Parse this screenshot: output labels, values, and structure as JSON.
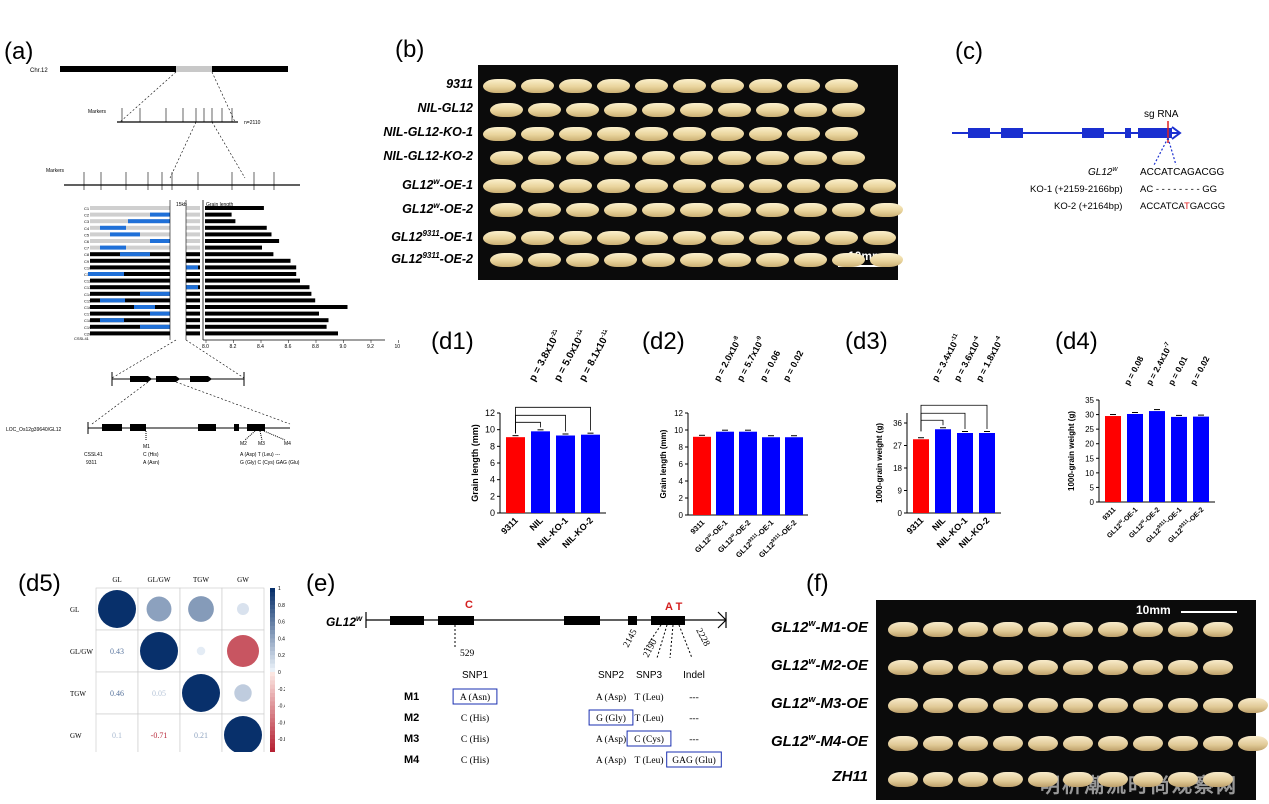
{
  "panels": {
    "a": "(a)",
    "b": "(b)",
    "c": "(c)",
    "d1": "(d1)",
    "d2": "(d2)",
    "d3": "(d3)",
    "d4": "(d4)",
    "d5": "(d5)",
    "e": "(e)",
    "f": "(f)"
  },
  "panel_b": {
    "rows": [
      "9311",
      "NIL-GL12",
      "NIL-GL12-KO-1",
      "NIL-GL12-KO-2",
      "GL12w-OE-1",
      "GL12w-OE-2",
      "GL129311-OE-1",
      "GL129311-OE-2"
    ],
    "scale": "10mm"
  },
  "panel_c": {
    "sg": "sg RNA",
    "gene": "GL12",
    "gene_sup": "w",
    "seq_wt": "ACCATCAGACGG",
    "ko1_label": "KO-1 (+2159-2166bp)",
    "ko1_seq": "AC - - - - - - - - GG",
    "ko2_label": "KO-2 (+2164bp)",
    "ko2_seq_a": "ACCATCA",
    "ko2_seq_ins": "T",
    "ko2_seq_b": "GACGG"
  },
  "panel_a": {
    "chr": "Chr.12",
    "markers": "Markers",
    "markers2": "Markers",
    "n": "n=2110",
    "lab_kb": "15kb",
    "grain_length": "Grain length",
    "locus": "LOC_Os12g39640/GL12",
    "cssl": "CSSL41",
    "cssl_b": "CSSL41",
    "n9311": "9311",
    "m1": "M1",
    "m2": "M2",
    "m3": "M3",
    "m4": "M4",
    "cssl_vals": "C (His)",
    "cssl_vals2": "A (Asp)  T (Leu)   ---",
    "n9311_vals": "A (Asn)",
    "n9311_vals2": "G (Gly)  C (Cys)  GAG (Glu)",
    "xticks": [
      "8.0",
      "8.2",
      "8.4",
      "8.6",
      "8.8",
      "9.0",
      "9.2",
      "10.4 (mm)"
    ],
    "rowlabels": [
      "C1",
      "C2",
      "C3",
      "C4",
      "C5",
      "C6",
      "C7",
      "C8",
      "C9",
      "C10",
      "C11",
      "C12",
      "C13",
      "C14",
      "C15",
      "C16",
      "C17",
      "C18",
      "C19",
      "C20"
    ]
  },
  "chart_data": [
    {
      "type": "bar",
      "id": "d1",
      "categories": [
        "9311",
        "NIL",
        "NIL-KO-1",
        "NIL-KO-2"
      ],
      "values": [
        9.1,
        9.8,
        9.3,
        9.4
      ],
      "colors": [
        "#ff0000",
        "#0000ff",
        "#0000ff",
        "#0000ff"
      ],
      "ylabel": "Grain length (mm)",
      "ylim": [
        0,
        12
      ],
      "yticks": [
        0,
        2,
        4,
        6,
        8,
        10,
        12
      ],
      "annotations": [
        "p = 3.8x10-23",
        "p = 5.0x10-12",
        "p = 8.1x10-12"
      ]
    },
    {
      "type": "bar",
      "id": "d2",
      "categories": [
        "9311",
        "GL12w-OE-1",
        "GL12w-OE-2",
        "GL129311-OE-1",
        "GL129311-OE-2"
      ],
      "values": [
        9.2,
        9.8,
        9.8,
        9.15,
        9.15
      ],
      "colors": [
        "#ff0000",
        "#0000ff",
        "#0000ff",
        "#0000ff",
        "#0000ff"
      ],
      "ylabel": "Grain length (mm)",
      "ylim": [
        0,
        12
      ],
      "yticks": [
        0,
        2,
        4,
        6,
        8,
        10,
        12
      ],
      "annotations": [
        "p = 2.0x10-8",
        "p = 5.7x10-9",
        "p = 0.06",
        "p = 0.02"
      ]
    },
    {
      "type": "bar",
      "id": "d3",
      "categories": [
        "9311",
        "NIL",
        "NIL-KO-1",
        "NIL-KO-2"
      ],
      "values": [
        29.5,
        33.5,
        32,
        32
      ],
      "colors": [
        "#ff0000",
        "#0000ff",
        "#0000ff",
        "#0000ff"
      ],
      "ylabel": "1000-grain weight (g)",
      "ylim": [
        0,
        40
      ],
      "yticks": [
        0,
        9,
        18,
        27,
        36
      ],
      "annotations": [
        "p = 3.4x10-11",
        "p = 3.6x10-4",
        "p = 1.8x10-4"
      ]
    },
    {
      "type": "bar",
      "id": "d4",
      "categories": [
        "9311",
        "GL12w-OE-1",
        "GL12w-OE-2",
        "GL129311-OE-1",
        "GL129311-OE-2"
      ],
      "values": [
        29.5,
        30.2,
        31.2,
        29.2,
        29.3
      ],
      "colors": [
        "#ff0000",
        "#0000ff",
        "#0000ff",
        "#0000ff",
        "#0000ff"
      ],
      "ylabel": "1000-grain weight (g)",
      "ylim": [
        0,
        35
      ],
      "yticks": [
        0,
        5,
        10,
        15,
        20,
        25,
        30,
        35
      ],
      "annotations": [
        "p = 0.08",
        "p = 2.4x10-7",
        "p = 0.01",
        "p = 0.02"
      ]
    },
    {
      "type": "heatmap",
      "id": "d5",
      "labels": [
        "GL",
        "GL/GW",
        "TGW",
        "GW"
      ],
      "matrix": [
        [
          1,
          0.43,
          0.46,
          0.1
        ],
        [
          0.43,
          1,
          0.05,
          -0.71
        ],
        [
          0.46,
          0.05,
          1,
          0.21
        ],
        [
          0.1,
          -0.71,
          0.21,
          1
        ]
      ],
      "display": [
        [
          "",
          "",
          "",
          ""
        ],
        [
          "0.43",
          "",
          "",
          ""
        ],
        [
          "0.46",
          "0.05",
          "",
          ""
        ],
        [
          "0.1",
          "-0.71",
          "0.21",
          ""
        ]
      ],
      "colorbar_ticks": [
        "1",
        "0.8",
        "0.6",
        "0.4",
        "0.2",
        "0",
        "-0.2",
        "-0.4",
        "-0.6",
        "-0.8",
        "-1"
      ]
    }
  ],
  "panel_e": {
    "gene": "GL12",
    "gene_sup": "w",
    "snp_c": "C",
    "snp_at": "A T",
    "pos": [
      "529",
      "2145",
      "2190",
      "2228"
    ],
    "headers": [
      "SNP1",
      "SNP2",
      "SNP3",
      "Indel"
    ],
    "rows": [
      {
        "name": "M1",
        "c": [
          "A (Asn)",
          "A (Asp)",
          "T (Leu)",
          "---"
        ]
      },
      {
        "name": "M2",
        "c": [
          "C (His)",
          "G (Gly)",
          "T (Leu)",
          "---"
        ]
      },
      {
        "name": "M3",
        "c": [
          "C (His)",
          "A (Asp)",
          "C (Cys)",
          "---"
        ]
      },
      {
        "name": "M4",
        "c": [
          "C (His)",
          "A (Asp)",
          "T (Leu)",
          "GAG (Glu)"
        ]
      }
    ]
  },
  "panel_f": {
    "rows": [
      "GL12w-M1-OE",
      "GL12w-M2-OE",
      "GL12w-M3-OE",
      "GL12w-M4-OE",
      "ZH11"
    ],
    "scale": "10mm"
  },
  "watermark": "明析潮流时尚观察网"
}
